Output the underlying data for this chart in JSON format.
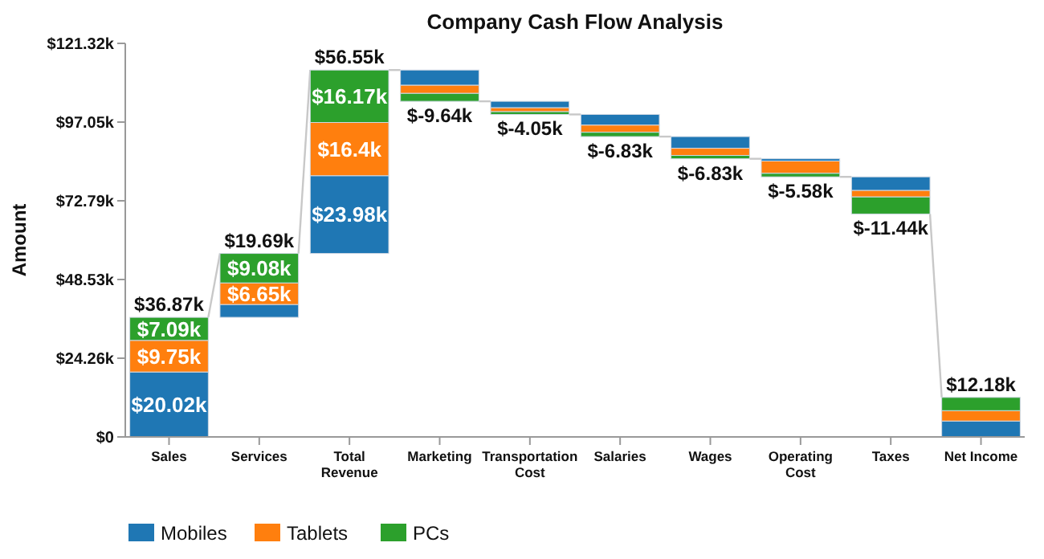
{
  "chart_data": {
    "type": "bar",
    "title": "Company Cash Flow Analysis",
    "ylabel": "Amount",
    "categories": [
      "Sales",
      "Services",
      "Total Revenue",
      "Marketing",
      "Transportation Cost",
      "Salaries",
      "Wages",
      "Operating Cost",
      "Taxes",
      "Net Income"
    ],
    "series": [
      {
        "name": "Mobiles",
        "color": "#1f77b4",
        "base": [
          0,
          36.87,
          56.55,
          113.1,
          103.46,
          99.41,
          92.58,
          85.75,
          80.17,
          0
        ],
        "values": [
          20.02,
          3.96,
          23.98,
          -4.7,
          -2.0,
          -3.3,
          -3.6,
          -0.7,
          -4.2,
          4.9
        ],
        "value_labels": [
          "$20.02k",
          null,
          "$23.98k",
          null,
          null,
          null,
          null,
          null,
          null,
          null
        ]
      },
      {
        "name": "Tablets",
        "color": "#ff7f0e",
        "base": [
          20.02,
          40.83,
          80.53,
          108.4,
          101.46,
          96.11,
          88.98,
          85.05,
          75.97,
          4.9
        ],
        "values": [
          9.75,
          6.65,
          16.4,
          -2.5,
          -1.2,
          -2.2,
          -2.2,
          -3.8,
          -2.0,
          3.2
        ],
        "value_labels": [
          "$9.75k",
          "$6.65k",
          "$16.4k",
          null,
          null,
          null,
          null,
          null,
          null,
          null
        ]
      },
      {
        "name": "PCs",
        "color": "#2ca02c",
        "base": [
          29.77,
          47.48,
          96.93,
          105.9,
          100.26,
          93.91,
          86.78,
          81.25,
          73.97,
          8.1
        ],
        "values": [
          7.09,
          9.08,
          16.17,
          -2.44,
          -0.85,
          -1.33,
          -1.03,
          -1.08,
          -5.24,
          4.08
        ],
        "value_labels": [
          "$7.09k",
          "$9.08k",
          "$16.17k",
          null,
          null,
          null,
          null,
          null,
          null,
          null
        ]
      }
    ],
    "totals": [
      "$36.87k",
      "$19.69k",
      "$56.55k",
      "$-9.64k",
      "$-4.05k",
      "$-6.83k",
      "$-6.83k",
      "$-5.58k",
      "$-11.44k",
      "$12.18k"
    ],
    "ylim": [
      0,
      121.32
    ],
    "yticks": [
      {
        "value": 0,
        "label": "$0"
      },
      {
        "value": 24.26,
        "label": "$24.26k"
      },
      {
        "value": 48.53,
        "label": "$48.53k"
      },
      {
        "value": 72.79,
        "label": "$72.79k"
      },
      {
        "value": 97.05,
        "label": "$97.05k"
      },
      {
        "value": 121.32,
        "label": "$121.32k"
      }
    ],
    "legend": "bottom left"
  }
}
